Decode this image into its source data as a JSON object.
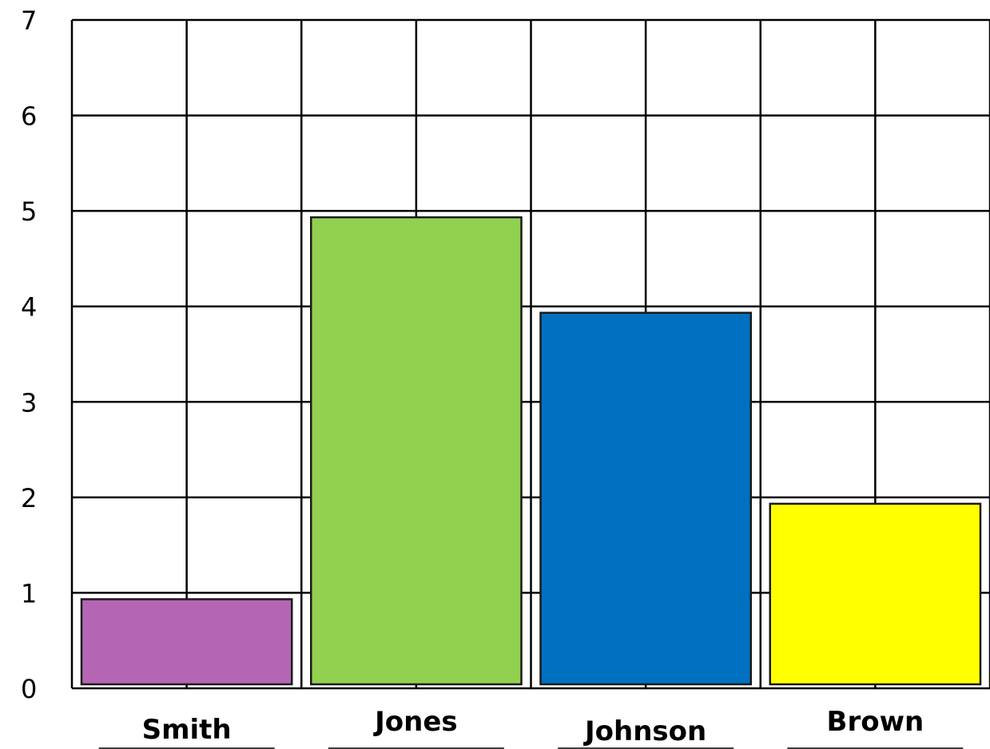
{
  "chart_data": {
    "type": "bar",
    "categories": [
      "Smith",
      "Jones",
      "Johnson",
      "Brown"
    ],
    "values": [
      1,
      5,
      4,
      2
    ],
    "colors": [
      "#b466b4",
      "#92d050",
      "#0070c0",
      "#ffff00"
    ],
    "ylim": [
      0,
      7
    ],
    "yticks": [
      "0",
      "1",
      "2",
      "3",
      "4",
      "5",
      "6",
      "7"
    ],
    "grid": true,
    "legend": "none"
  }
}
